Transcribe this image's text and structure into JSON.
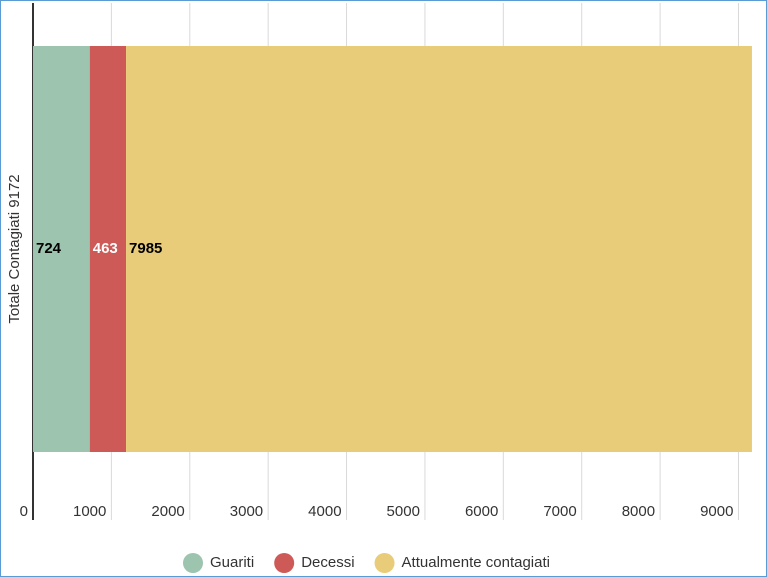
{
  "chart_data": {
    "type": "stacked-bar-horizontal",
    "categories": [
      "Totale Contagiati 9172"
    ],
    "series": [
      {
        "name": "Guariti",
        "color": "#9cc4ae",
        "label_color": "#000000",
        "values": [
          724
        ]
      },
      {
        "name": "Decessi",
        "color": "#cd5a57",
        "label_color": "#ffffff",
        "values": [
          463
        ]
      },
      {
        "name": "Attualmente contagiati",
        "color": "#e9cc79",
        "label_color": "#000000",
        "values": [
          7985
        ]
      }
    ],
    "xlim": [
      0,
      9300
    ],
    "xticks": [
      0,
      1000,
      2000,
      3000,
      4000,
      5000,
      6000,
      7000,
      8000,
      9000
    ],
    "grid": true,
    "legend": "bottom"
  }
}
